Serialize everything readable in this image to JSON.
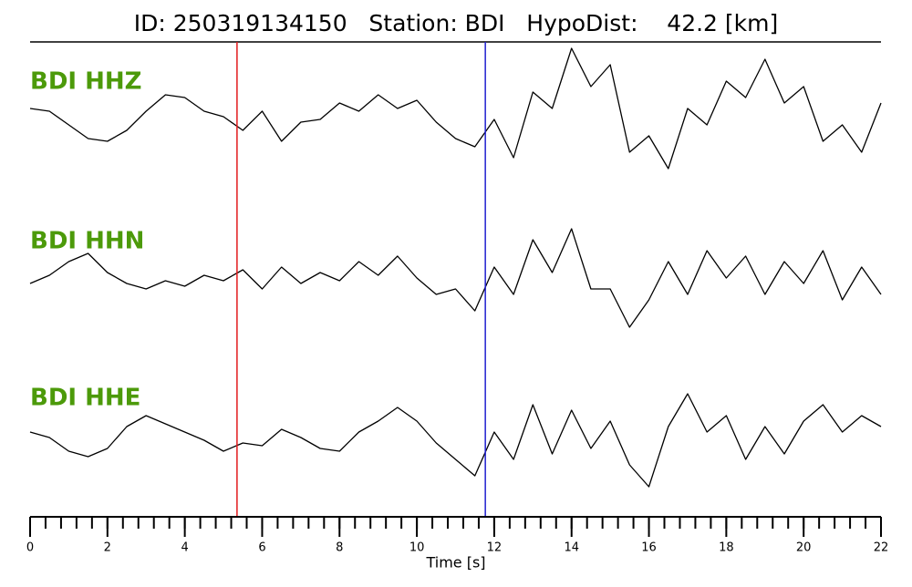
{
  "chart_data": {
    "type": "seismogram",
    "title": "ID: 250319134150   Station: BDI   HypoDist:    42.2 [km]",
    "xlabel": "Time [s]",
    "xlim": [
      0,
      22
    ],
    "xticks": [
      0,
      2,
      4,
      6,
      8,
      10,
      12,
      14,
      16,
      18,
      20,
      22
    ],
    "xminorticks": [
      0,
      0.4,
      0.8,
      1.2,
      1.6,
      2,
      2.4,
      2.8,
      3.2,
      3.6,
      4,
      4.4,
      4.8,
      5.2,
      5.6,
      6,
      6.4,
      6.8,
      7.2,
      7.6,
      8,
      8.4,
      8.8,
      9.2,
      9.6,
      10,
      10.4,
      10.8,
      11.2,
      11.6,
      12,
      12.4,
      12.8,
      13.2,
      13.6,
      14,
      14.4,
      14.8,
      15.2,
      15.6,
      16,
      16.4,
      16.8,
      17.2,
      17.6,
      18,
      18.4,
      18.8,
      19.2,
      19.6,
      20,
      20.4,
      20.8,
      21.2,
      21.6,
      22
    ],
    "ylim": [
      -1,
      1
    ],
    "x": [
      0,
      0.5,
      1,
      1.5,
      2,
      2.5,
      3,
      3.5,
      4,
      4.5,
      5,
      5.5,
      6,
      6.5,
      7,
      7.5,
      8,
      8.5,
      9,
      9.5,
      10,
      10.5,
      11,
      11.5,
      12,
      12.5,
      13,
      13.5,
      14,
      14.5,
      15,
      15.5,
      16,
      16.5,
      17,
      17.5,
      18,
      18.5,
      19,
      19.5,
      20,
      20.5,
      21,
      21.5,
      22
    ],
    "series": [
      {
        "name": "BDI HHZ",
        "color": "#000000",
        "label_color": "#4c9a0a",
        "values": [
          0.1,
          0.05,
          -0.2,
          -0.45,
          -0.5,
          -0.3,
          0.05,
          0.35,
          0.3,
          0.05,
          -0.05,
          -0.3,
          0.05,
          -0.5,
          -0.15,
          -0.1,
          0.2,
          0.05,
          0.35,
          0.1,
          0.25,
          -0.15,
          -0.45,
          -0.6,
          -0.1,
          -0.8,
          0.4,
          0.1,
          1.2,
          0.5,
          0.9,
          -0.7,
          -0.4,
          -1.0,
          0.1,
          -0.2,
          0.6,
          0.3,
          1.0,
          0.2,
          0.5,
          -0.5,
          -0.2,
          -0.7,
          0.2
        ]
      },
      {
        "name": "BDI HHN",
        "color": "#000000",
        "label_color": "#4c9a0a",
        "values": [
          -0.1,
          0.05,
          0.3,
          0.45,
          0.1,
          -0.1,
          -0.2,
          -0.05,
          -0.15,
          0.05,
          -0.05,
          0.15,
          -0.2,
          0.2,
          -0.1,
          0.1,
          -0.05,
          0.3,
          0.05,
          0.4,
          0.0,
          -0.3,
          -0.2,
          -0.6,
          0.2,
          -0.3,
          0.7,
          0.1,
          0.9,
          -0.2,
          -0.2,
          -0.9,
          -0.4,
          0.3,
          -0.3,
          0.5,
          0.0,
          0.4,
          -0.3,
          0.3,
          -0.1,
          0.5,
          -0.4,
          0.2,
          -0.3
        ]
      },
      {
        "name": "BDI HHE",
        "color": "#000000",
        "label_color": "#4c9a0a",
        "values": [
          0.1,
          0.0,
          -0.25,
          -0.35,
          -0.2,
          0.2,
          0.4,
          0.25,
          0.1,
          -0.05,
          -0.25,
          -0.1,
          -0.15,
          0.15,
          0.0,
          -0.2,
          -0.25,
          0.1,
          0.3,
          0.55,
          0.3,
          -0.1,
          -0.4,
          -0.7,
          0.1,
          -0.4,
          0.6,
          -0.3,
          0.5,
          -0.2,
          0.3,
          -0.5,
          -0.9,
          0.2,
          0.8,
          0.1,
          0.4,
          -0.4,
          0.2,
          -0.3,
          0.3,
          0.6,
          0.1,
          0.4,
          0.2
        ]
      }
    ],
    "picks": [
      {
        "x": 5.35,
        "color": "#e31a1c"
      },
      {
        "x": 11.77,
        "color": "#1f1fd0"
      }
    ]
  }
}
